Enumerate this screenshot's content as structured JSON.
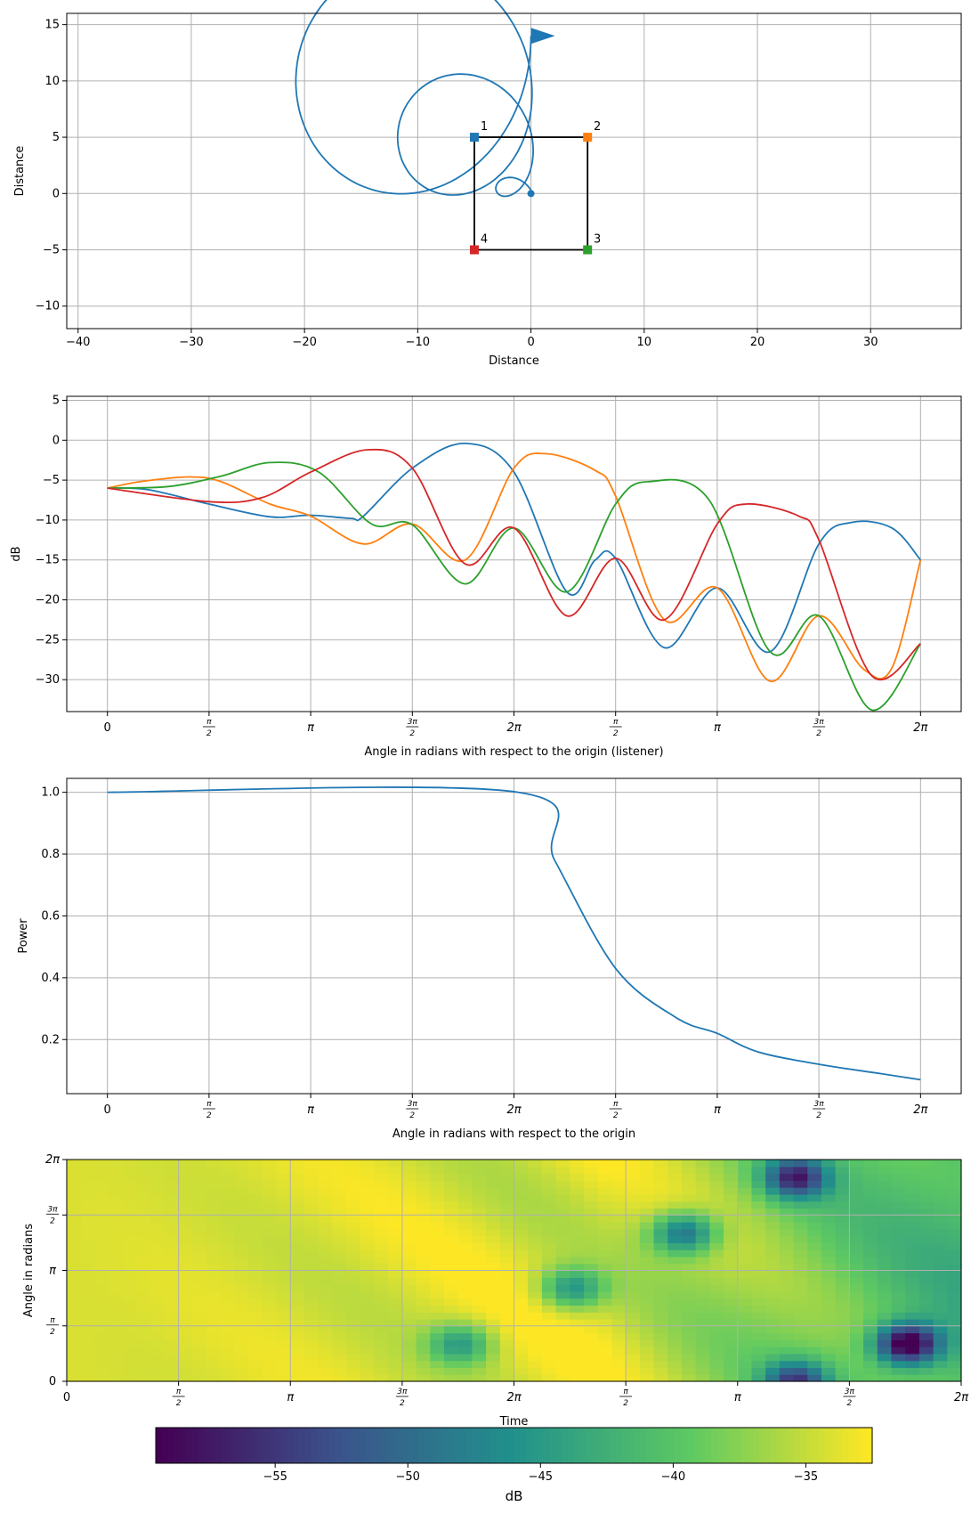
{
  "chart_data": [
    {
      "type": "line",
      "subtype": "trajectory",
      "xlabel": "Distance",
      "ylabel": "Distance",
      "xlim": [
        -41,
        38
      ],
      "ylim": [
        -12,
        16
      ],
      "xticks": [
        -40,
        -30,
        -20,
        -10,
        0,
        10,
        20,
        30
      ],
      "yticks": [
        -10,
        -5,
        0,
        5,
        10,
        15
      ],
      "grid": true,
      "spiral": {
        "center": [
          0,
          0
        ],
        "end_marker": [
          0,
          14
        ],
        "shape": "outward spiral from origin ending with arrow marker"
      },
      "speakers": [
        {
          "label": "1",
          "x": -5,
          "y": 5,
          "color": "#1f77b4"
        },
        {
          "label": "2",
          "x": 5,
          "y": 5,
          "color": "#ff7f0e"
        },
        {
          "label": "3",
          "x": 5,
          "y": -5,
          "color": "#2ca02c"
        },
        {
          "label": "4",
          "x": -5,
          "y": -5,
          "color": "#d62728"
        }
      ],
      "box_color": "#000000"
    },
    {
      "type": "line",
      "xlabel": "Angle in radians with respect to the origin (listener)",
      "ylabel": "dB",
      "ylim": [
        -34,
        5.5
      ],
      "xlim": [
        -0.1,
        2.1
      ],
      "yticks": [
        -30,
        -25,
        -20,
        -15,
        -10,
        -5,
        0,
        5
      ],
      "xticks": [
        0,
        0.25,
        0.5,
        0.75,
        1.0,
        1.25,
        1.5,
        1.75,
        2.0
      ],
      "xticklabels": [
        "0",
        "π/2",
        "π",
        "3π/2",
        "2π",
        "π/2",
        "π",
        "3π/2",
        "2π"
      ],
      "grid": true,
      "x": [
        0,
        0.25,
        0.5,
        0.75,
        1.0,
        1.25,
        1.5,
        1.75,
        2.0
      ],
      "series": [
        {
          "color": "#1f77b4",
          "points": [
            [
              0,
              -6
            ],
            [
              0.1,
              -6.2
            ],
            [
              0.25,
              -8
            ],
            [
              0.4,
              -9.6
            ],
            [
              0.5,
              -9.4
            ],
            [
              0.6,
              -9.8
            ],
            [
              0.63,
              -9.5
            ],
            [
              0.75,
              -3.5
            ],
            [
              0.88,
              -0.4
            ],
            [
              1.0,
              -4
            ],
            [
              1.13,
              -19
            ],
            [
              1.2,
              -15
            ],
            [
              1.25,
              -14.8
            ],
            [
              1.37,
              -26
            ],
            [
              1.5,
              -18.5
            ],
            [
              1.63,
              -26.5
            ],
            [
              1.75,
              -13
            ],
            [
              1.83,
              -10.3
            ],
            [
              1.93,
              -11
            ],
            [
              2.0,
              -15
            ]
          ]
        },
        {
          "color": "#ff7f0e",
          "points": [
            [
              0,
              -6
            ],
            [
              0.08,
              -5.2
            ],
            [
              0.2,
              -4.6
            ],
            [
              0.28,
              -5.2
            ],
            [
              0.4,
              -8
            ],
            [
              0.5,
              -9.5
            ],
            [
              0.63,
              -13
            ],
            [
              0.75,
              -10.5
            ],
            [
              0.88,
              -15
            ],
            [
              1.0,
              -3.5
            ],
            [
              1.08,
              -1.7
            ],
            [
              1.2,
              -3.8
            ],
            [
              1.25,
              -7
            ],
            [
              1.37,
              -22.5
            ],
            [
              1.5,
              -18.5
            ],
            [
              1.63,
              -30.2
            ],
            [
              1.75,
              -22
            ],
            [
              1.86,
              -28.7
            ],
            [
              1.93,
              -28.5
            ],
            [
              2.0,
              -15
            ]
          ]
        },
        {
          "color": "#2ca02c",
          "points": [
            [
              0,
              -6
            ],
            [
              0.15,
              -5.8
            ],
            [
              0.28,
              -4.5
            ],
            [
              0.4,
              -2.8
            ],
            [
              0.52,
              -4
            ],
            [
              0.65,
              -10.5
            ],
            [
              0.75,
              -10.6
            ],
            [
              0.88,
              -18
            ],
            [
              1.0,
              -11
            ],
            [
              1.13,
              -19
            ],
            [
              1.25,
              -8
            ],
            [
              1.33,
              -5.2
            ],
            [
              1.48,
              -7.5
            ],
            [
              1.63,
              -26.5
            ],
            [
              1.75,
              -22
            ],
            [
              1.88,
              -33.8
            ],
            [
              2.0,
              -25.5
            ]
          ]
        },
        {
          "color": "#d62728",
          "points": [
            [
              0,
              -6
            ],
            [
              0.25,
              -7.7
            ],
            [
              0.38,
              -7.2
            ],
            [
              0.5,
              -4
            ],
            [
              0.64,
              -1.2
            ],
            [
              0.75,
              -3.5
            ],
            [
              0.88,
              -15.5
            ],
            [
              1.0,
              -11
            ],
            [
              1.13,
              -22
            ],
            [
              1.25,
              -14.8
            ],
            [
              1.37,
              -22.5
            ],
            [
              1.5,
              -10.5
            ],
            [
              1.57,
              -8
            ],
            [
              1.7,
              -9.5
            ],
            [
              1.75,
              -12.5
            ],
            [
              1.88,
              -29.5
            ],
            [
              2.0,
              -25.5
            ]
          ]
        }
      ]
    },
    {
      "type": "line",
      "xlabel": "Angle in radians with respect to the origin",
      "ylabel": "Power",
      "xlim": [
        -0.1,
        2.1
      ],
      "ylim": [
        0.025,
        1.045
      ],
      "yticks": [
        0.2,
        0.4,
        0.6,
        0.8,
        1.0
      ],
      "xticks": [
        0,
        0.25,
        0.5,
        0.75,
        1.0,
        1.25,
        1.5,
        1.75,
        2.0
      ],
      "xticklabels": [
        "0",
        "π/2",
        "π",
        "3π/2",
        "2π",
        "π/2",
        "π",
        "3π/2",
        "2π"
      ],
      "grid": true,
      "series": [
        {
          "color": "#1f77b4",
          "points": [
            [
              0,
              1.0
            ],
            [
              1.01,
              1.0
            ],
            [
              1.1,
              0.78
            ],
            [
              1.25,
              0.43
            ],
            [
              1.4,
              0.27
            ],
            [
              1.5,
              0.22
            ],
            [
              1.6,
              0.16
            ],
            [
              1.75,
              0.12
            ],
            [
              1.9,
              0.09
            ],
            [
              2.0,
              0.07
            ]
          ]
        }
      ]
    },
    {
      "type": "heatmap",
      "xlabel": "Time",
      "ylabel": "Angle in radians",
      "xticks": [
        0,
        0.25,
        0.5,
        0.75,
        1.0,
        1.25,
        1.5,
        1.75,
        2.0
      ],
      "xticklabels": [
        "0",
        "π/2",
        "π",
        "3π/2",
        "2π",
        "π/2",
        "π",
        "3π/2",
        "2π"
      ],
      "yticks": [
        0,
        0.25,
        0.5,
        0.75,
        1.0
      ],
      "yticklabels": [
        "0",
        "π/2",
        "π",
        "3π/2",
        "2π"
      ],
      "grid": true,
      "colorbar": {
        "label": "dB",
        "range": [
          -59.5,
          -32.5
        ],
        "ticks": [
          -55,
          -50,
          -45,
          -40,
          -35
        ],
        "colormap": "viridis",
        "orientation": "horizontal"
      },
      "dark_spots": [
        {
          "x": 0.88,
          "y": 0.17,
          "value": -46
        },
        {
          "x": 1.13,
          "y": 0.42,
          "value": -47
        },
        {
          "x": 1.38,
          "y": 0.67,
          "value": -50
        },
        {
          "x": 1.63,
          "y": 0.92,
          "value": -54
        },
        {
          "x": 1.63,
          "y": 0.0,
          "value": -52
        },
        {
          "x": 1.88,
          "y": 0.17,
          "value": -59
        }
      ]
    }
  ]
}
